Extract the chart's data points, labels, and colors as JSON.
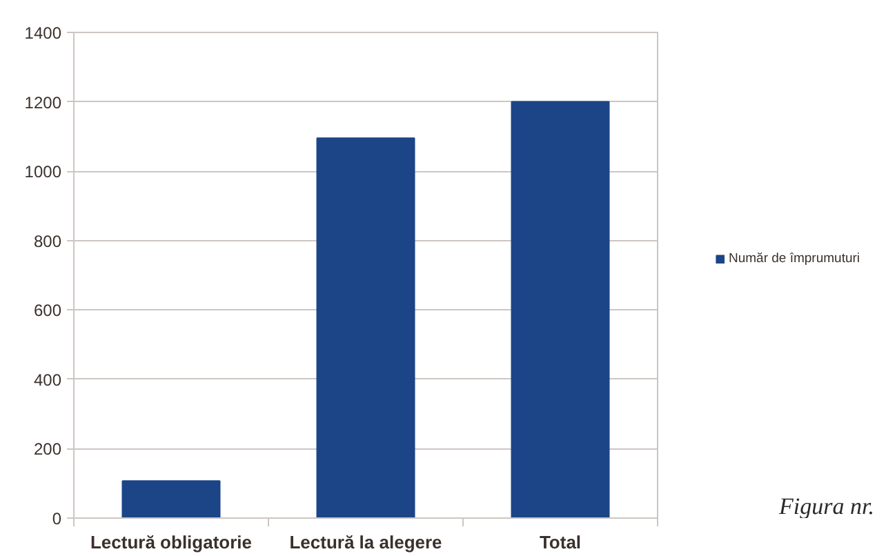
{
  "chart_data": {
    "type": "bar",
    "categories": [
      "Lectură obligatorie",
      "Lectură la alegere",
      "Total"
    ],
    "series": [
      {
        "name": "Număr de împrumuturi",
        "color": "#1c4587",
        "values": [
          107,
          1095,
          1200
        ]
      }
    ],
    "ylim": [
      0,
      1400
    ],
    "yticks": [
      0,
      200,
      400,
      600,
      800,
      1000,
      1200,
      1400
    ],
    "grid": "y",
    "legend": "right",
    "annotations": [
      "Figura nr."
    ]
  }
}
